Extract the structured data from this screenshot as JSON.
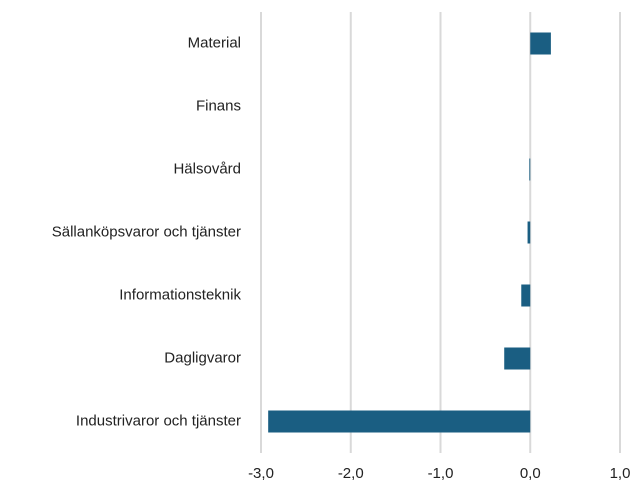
{
  "chart_data": {
    "type": "hbar",
    "categories": [
      "Material",
      "Finans",
      "Hälsovård",
      "Sällanköpsvaror och tjänster",
      "Informationsteknik",
      "Dagligvaror",
      "Industrivaror och tjänster"
    ],
    "values": [
      0.23,
      0,
      -0.01,
      -0.03,
      -0.1,
      -0.29,
      -2.92
    ],
    "color": "#1a5e82",
    "xlim": [
      -3,
      1
    ],
    "xticks": [
      {
        "value": -3,
        "label": "-3,0"
      },
      {
        "value": -2,
        "label": "-2,0"
      },
      {
        "value": -1,
        "label": "-1,0"
      },
      {
        "value": 0,
        "label": "0,0"
      },
      {
        "value": 1,
        "label": "1,0"
      }
    ],
    "grid": true
  }
}
